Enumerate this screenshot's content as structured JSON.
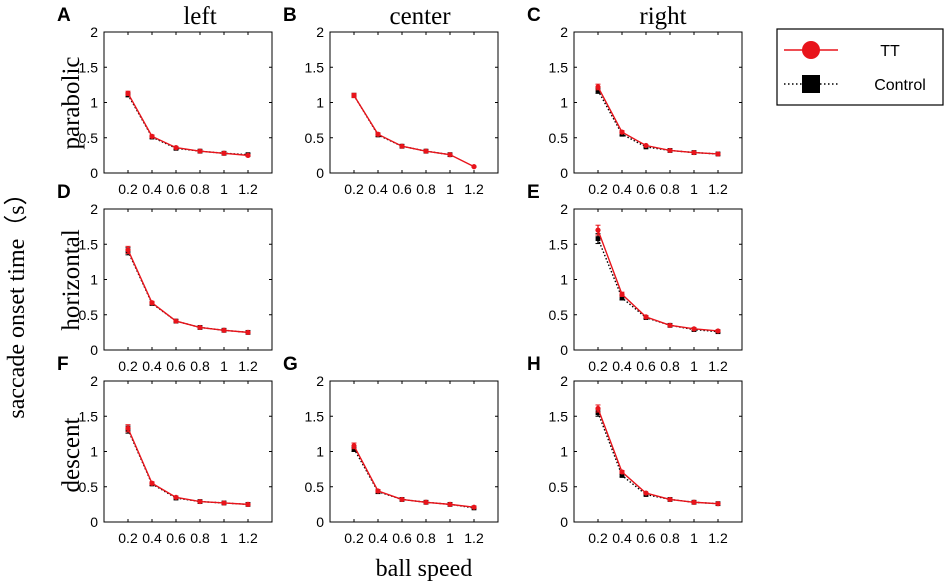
{
  "figure": {
    "col_titles": [
      "left",
      "center",
      "right"
    ],
    "row_titles": [
      "parabolic",
      "horizontal",
      "descent"
    ],
    "ylabel": "saccade onset time（s）",
    "xlabel": "ball speed"
  },
  "legend": {
    "entries": [
      {
        "label": "TT",
        "color": "#e8141b",
        "marker": "circle",
        "line": "solid"
      },
      {
        "label": "Control",
        "color": "#000000",
        "marker": "square",
        "line": "dotted"
      }
    ]
  },
  "chart_data": [
    {
      "panel": "A",
      "type": "line",
      "row": "parabolic",
      "col": "left",
      "categories": [
        "0.2",
        "0.4",
        "0.6",
        "0.8",
        "1",
        "1.2"
      ],
      "x": [
        0.2,
        0.4,
        0.6,
        0.8,
        1.0,
        1.2
      ],
      "xlim": [
        0,
        1.4
      ],
      "ylim": [
        0,
        2
      ],
      "yticks": [
        "0",
        "0.5",
        "1",
        "1.5",
        "2"
      ],
      "series": [
        {
          "name": "TT",
          "values": [
            1.13,
            0.52,
            0.36,
            0.31,
            0.28,
            0.25
          ],
          "err": [
            0.03,
            0.02,
            0.01,
            0.01,
            0.01,
            0.01
          ]
        },
        {
          "name": "Control",
          "values": [
            1.11,
            0.51,
            0.35,
            0.31,
            0.28,
            0.26
          ],
          "err": [
            0.03,
            0.02,
            0.01,
            0.01,
            0.01,
            0.01
          ]
        }
      ]
    },
    {
      "panel": "B",
      "type": "line",
      "row": "parabolic",
      "col": "center",
      "categories": [
        "0.2",
        "0.4",
        "0.6",
        "0.8",
        "1",
        "1.2"
      ],
      "x": [
        0.2,
        0.4,
        0.6,
        0.8,
        1.0,
        1.2
      ],
      "xlim": [
        0,
        1.4
      ],
      "ylim": [
        0,
        2
      ],
      "yticks": [
        "0",
        "0.5",
        "1",
        "1.5",
        "2"
      ],
      "series": [
        {
          "name": "TT",
          "values": [
            1.1,
            0.55,
            0.38,
            0.31,
            0.26,
            0.09
          ],
          "err": [
            0.03,
            0.02,
            0.01,
            0.01,
            0.01,
            0.01
          ]
        },
        {
          "name": "Control",
          "values": [
            1.1,
            0.54,
            0.38,
            0.31,
            0.26,
            null
          ],
          "err": [
            0.03,
            0.02,
            0.01,
            0.01,
            0.01,
            0
          ]
        }
      ]
    },
    {
      "panel": "C",
      "type": "line",
      "row": "parabolic",
      "col": "right",
      "categories": [
        "0.2",
        "0.4",
        "0.6",
        "0.8",
        "1",
        "1.2"
      ],
      "x": [
        0.2,
        0.4,
        0.6,
        0.8,
        1.0,
        1.2
      ],
      "xlim": [
        0,
        1.4
      ],
      "ylim": [
        0,
        2
      ],
      "yticks": [
        "0",
        "0.5",
        "1",
        "1.5",
        "2"
      ],
      "series": [
        {
          "name": "TT",
          "values": [
            1.22,
            0.58,
            0.39,
            0.32,
            0.29,
            0.27
          ],
          "err": [
            0.04,
            0.02,
            0.01,
            0.01,
            0.01,
            0.01
          ]
        },
        {
          "name": "Control",
          "values": [
            1.17,
            0.55,
            0.37,
            0.32,
            0.29,
            0.27
          ],
          "err": [
            0.04,
            0.02,
            0.01,
            0.01,
            0.01,
            0.01
          ]
        }
      ]
    },
    {
      "panel": "D",
      "type": "line",
      "row": "horizontal",
      "col": "left",
      "categories": [
        "0.2",
        "0.4",
        "0.6",
        "0.8",
        "1",
        "1.2"
      ],
      "x": [
        0.2,
        0.4,
        0.6,
        0.8,
        1.0,
        1.2
      ],
      "xlim": [
        0,
        1.4
      ],
      "ylim": [
        0,
        2
      ],
      "yticks": [
        "0",
        "0.5",
        "1",
        "1.5",
        "2"
      ],
      "series": [
        {
          "name": "TT",
          "values": [
            1.42,
            0.67,
            0.41,
            0.32,
            0.28,
            0.25
          ],
          "err": [
            0.05,
            0.02,
            0.01,
            0.01,
            0.01,
            0.01
          ]
        },
        {
          "name": "Control",
          "values": [
            1.4,
            0.66,
            0.41,
            0.32,
            0.28,
            0.25
          ],
          "err": [
            0.05,
            0.02,
            0.01,
            0.01,
            0.01,
            0.01
          ]
        }
      ]
    },
    {
      "panel": "E",
      "type": "line",
      "row": "horizontal",
      "col": "right",
      "categories": [
        "0.2",
        "0.4",
        "0.6",
        "0.8",
        "1",
        "1.2"
      ],
      "x": [
        0.2,
        0.4,
        0.6,
        0.8,
        1.0,
        1.2
      ],
      "xlim": [
        0,
        1.4
      ],
      "ylim": [
        0,
        2
      ],
      "yticks": [
        "0",
        "0.5",
        "1",
        "1.5",
        "2"
      ],
      "series": [
        {
          "name": "TT",
          "values": [
            1.7,
            0.79,
            0.47,
            0.35,
            0.3,
            0.27
          ],
          "err": [
            0.07,
            0.03,
            0.01,
            0.01,
            0.01,
            0.01
          ]
        },
        {
          "name": "Control",
          "values": [
            1.58,
            0.74,
            0.46,
            0.35,
            0.29,
            0.26
          ],
          "err": [
            0.07,
            0.03,
            0.01,
            0.01,
            0.01,
            0.01
          ]
        }
      ]
    },
    {
      "panel": "F",
      "type": "line",
      "row": "descent",
      "col": "left",
      "categories": [
        "0.2",
        "0.4",
        "0.6",
        "0.8",
        "1",
        "1.2"
      ],
      "x": [
        0.2,
        0.4,
        0.6,
        0.8,
        1.0,
        1.2
      ],
      "xlim": [
        0,
        1.4
      ],
      "ylim": [
        0,
        2
      ],
      "yticks": [
        "0",
        "0.5",
        "1",
        "1.5",
        "2"
      ],
      "series": [
        {
          "name": "TT",
          "values": [
            1.33,
            0.55,
            0.35,
            0.29,
            0.27,
            0.25
          ],
          "err": [
            0.05,
            0.02,
            0.01,
            0.01,
            0.01,
            0.01
          ]
        },
        {
          "name": "Control",
          "values": [
            1.31,
            0.54,
            0.34,
            0.29,
            0.27,
            0.25
          ],
          "err": [
            0.05,
            0.02,
            0.01,
            0.01,
            0.01,
            0.01
          ]
        }
      ]
    },
    {
      "panel": "G",
      "type": "line",
      "row": "descent",
      "col": "center",
      "categories": [
        "0.2",
        "0.4",
        "0.6",
        "0.8",
        "1",
        "1.2"
      ],
      "x": [
        0.2,
        0.4,
        0.6,
        0.8,
        1.0,
        1.2
      ],
      "xlim": [
        0,
        1.4
      ],
      "ylim": [
        0,
        2
      ],
      "yticks": [
        "0",
        "0.5",
        "1",
        "1.5",
        "2"
      ],
      "series": [
        {
          "name": "TT",
          "values": [
            1.08,
            0.44,
            0.32,
            0.28,
            0.25,
            0.21
          ],
          "err": [
            0.04,
            0.02,
            0.01,
            0.01,
            0.01,
            0.01
          ]
        },
        {
          "name": "Control",
          "values": [
            1.04,
            0.43,
            0.32,
            0.28,
            0.25,
            0.2
          ],
          "err": [
            0.04,
            0.02,
            0.01,
            0.01,
            0.01,
            0.01
          ]
        }
      ]
    },
    {
      "panel": "H",
      "type": "line",
      "row": "descent",
      "col": "right",
      "categories": [
        "0.2",
        "0.4",
        "0.6",
        "0.8",
        "1",
        "1.2"
      ],
      "x": [
        0.2,
        0.4,
        0.6,
        0.8,
        1.0,
        1.2
      ],
      "xlim": [
        0,
        1.4
      ],
      "ylim": [
        0,
        2
      ],
      "yticks": [
        "0",
        "0.5",
        "1",
        "1.5",
        "2"
      ],
      "series": [
        {
          "name": "TT",
          "values": [
            1.61,
            0.71,
            0.41,
            0.32,
            0.28,
            0.26
          ],
          "err": [
            0.05,
            0.02,
            0.01,
            0.01,
            0.01,
            0.01
          ]
        },
        {
          "name": "Control",
          "values": [
            1.55,
            0.66,
            0.39,
            0.32,
            0.28,
            0.26
          ],
          "err": [
            0.05,
            0.02,
            0.01,
            0.01,
            0.01,
            0.01
          ]
        }
      ]
    }
  ]
}
